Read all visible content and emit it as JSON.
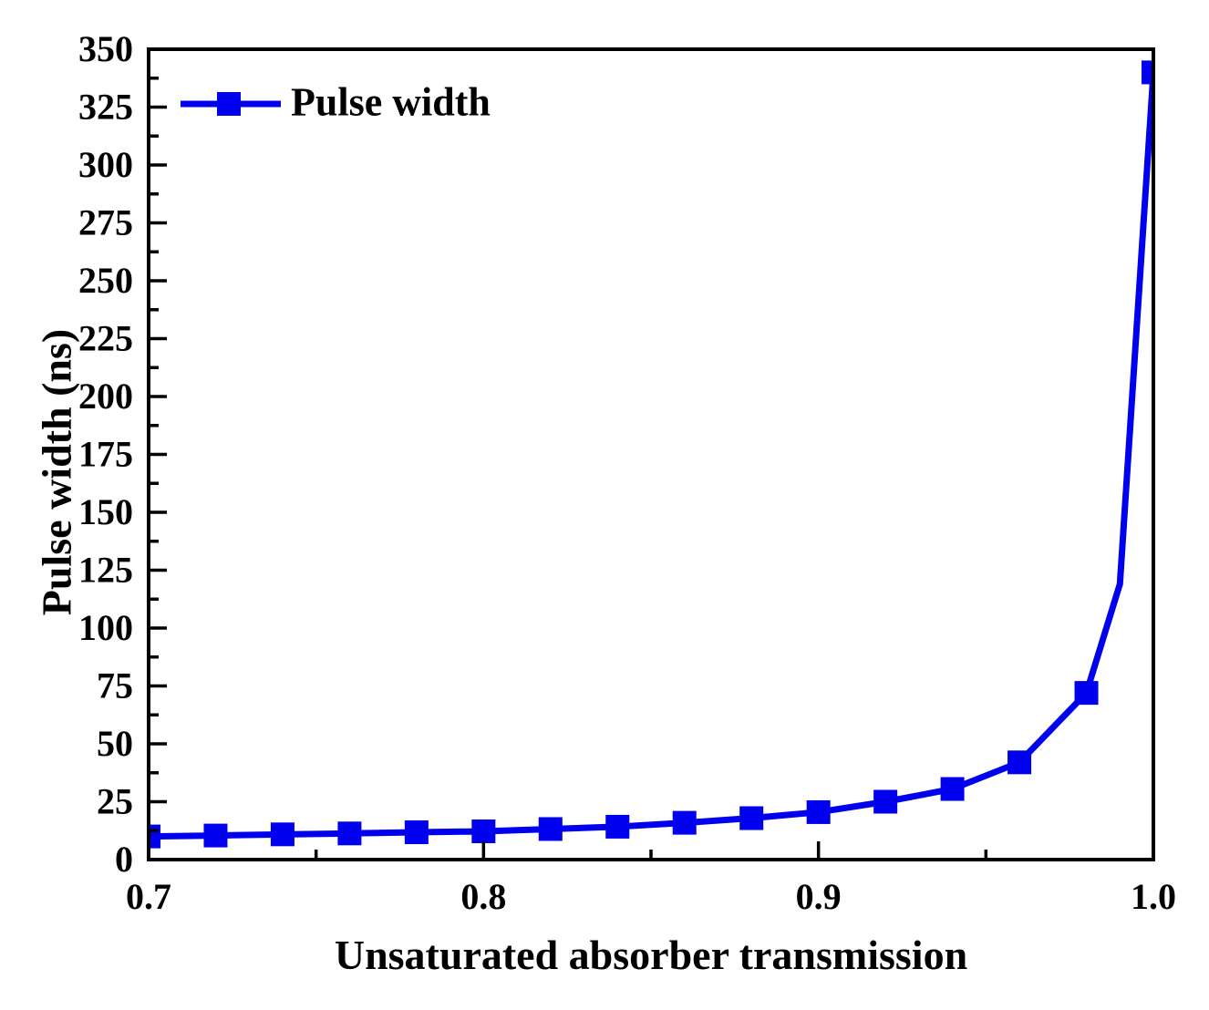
{
  "figure": {
    "background": "#ffffff",
    "text_color": "#000000",
    "frame_color": "#000000"
  },
  "chart_data": {
    "type": "line",
    "title": "",
    "xlabel": "Unsaturated absorber transmission",
    "ylabel": "Pulse width (ns)",
    "xlim": [
      0.7,
      1.0
    ],
    "ylim": [
      0,
      350
    ],
    "x_ticks": [
      0.7,
      0.8,
      0.9,
      1.0
    ],
    "x_tick_labels": [
      "0.7",
      "0.8",
      "0.9",
      "1.0"
    ],
    "x_minor_ticks": [
      0.75,
      0.85,
      0.95
    ],
    "y_ticks": [
      0,
      25,
      50,
      75,
      100,
      125,
      150,
      175,
      200,
      225,
      250,
      275,
      300,
      325,
      350
    ],
    "y_minor_ticks": [
      12.5,
      37.5,
      62.5,
      87.5,
      112.5,
      137.5,
      162.5,
      187.5,
      212.5,
      237.5,
      262.5,
      287.5,
      312.5,
      337.5
    ],
    "grid": false,
    "legend_position": "top-left-inside",
    "legend": [
      {
        "label": "Pulse width",
        "color": "#0000ee",
        "marker": "square"
      }
    ],
    "series": [
      {
        "name": "Pulse width",
        "color": "#0000ee",
        "marker": "square",
        "line_width": 7,
        "marker_size": 26,
        "points": [
          {
            "x": 0.7,
            "y": 10.0,
            "marker": true
          },
          {
            "x": 0.72,
            "y": 10.4,
            "marker": true
          },
          {
            "x": 0.74,
            "y": 10.9,
            "marker": true
          },
          {
            "x": 0.76,
            "y": 11.3,
            "marker": true
          },
          {
            "x": 0.78,
            "y": 11.8,
            "marker": true
          },
          {
            "x": 0.8,
            "y": 12.2,
            "marker": true
          },
          {
            "x": 0.82,
            "y": 13.2,
            "marker": true
          },
          {
            "x": 0.84,
            "y": 14.2,
            "marker": true
          },
          {
            "x": 0.86,
            "y": 15.9,
            "marker": true
          },
          {
            "x": 0.88,
            "y": 17.9,
            "marker": true
          },
          {
            "x": 0.9,
            "y": 20.5,
            "marker": true
          },
          {
            "x": 0.92,
            "y": 25.0,
            "marker": true
          },
          {
            "x": 0.94,
            "y": 30.5,
            "marker": true
          },
          {
            "x": 0.96,
            "y": 42.0,
            "marker": true
          },
          {
            "x": 0.98,
            "y": 72.0,
            "marker": true
          },
          {
            "x": 0.99,
            "y": 119.0,
            "marker": false
          },
          {
            "x": 1.0,
            "y": 340.0,
            "marker": true
          }
        ]
      }
    ]
  }
}
